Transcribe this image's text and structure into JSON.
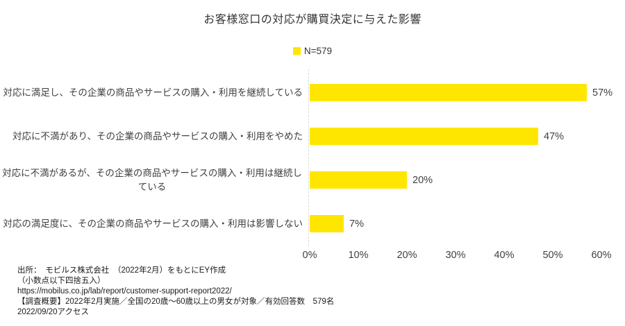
{
  "chart_data": {
    "type": "bar",
    "orientation": "horizontal",
    "title": "お客様窓口の対応が購買決定に与えた影響",
    "legend": {
      "label": "N=579",
      "position": "top-center"
    },
    "categories": [
      "対応に満足し、その企業の商品やサービスの購入・利用を継続している",
      "対応に不満があり、その企業の商品やサービスの購入・利用をやめた",
      "対応に不満があるが、その企業の商品やサービスの購入・利用は継続している",
      "対応の満足度に、その企業の商品やサービスの購入・利用は影響しない"
    ],
    "values": [
      57,
      47,
      20,
      7
    ],
    "value_labels": [
      "57%",
      "47%",
      "20%",
      "7%"
    ],
    "x_ticks": [
      "0%",
      "10%",
      "20%",
      "30%",
      "40%",
      "50%",
      "60%"
    ],
    "xlim": [
      0,
      60
    ],
    "grid": false,
    "bar_color": "#FFE600",
    "text_color": "#404040",
    "axis_line_color": "#d9d9d9"
  },
  "footer": {
    "lines": [
      "出所：　モビルス株式会社　（2022年2月）をもとにEY作成",
      "（小数点以下四捨五入）",
      "https://mobilus.co.jp/lab/report/customer-support-report2022/",
      "【調査概要】2022年2月実施／全国の20歳～60歳以上の男女が対象／有効回答数　579名",
      "2022/09/20アクセス"
    ]
  }
}
